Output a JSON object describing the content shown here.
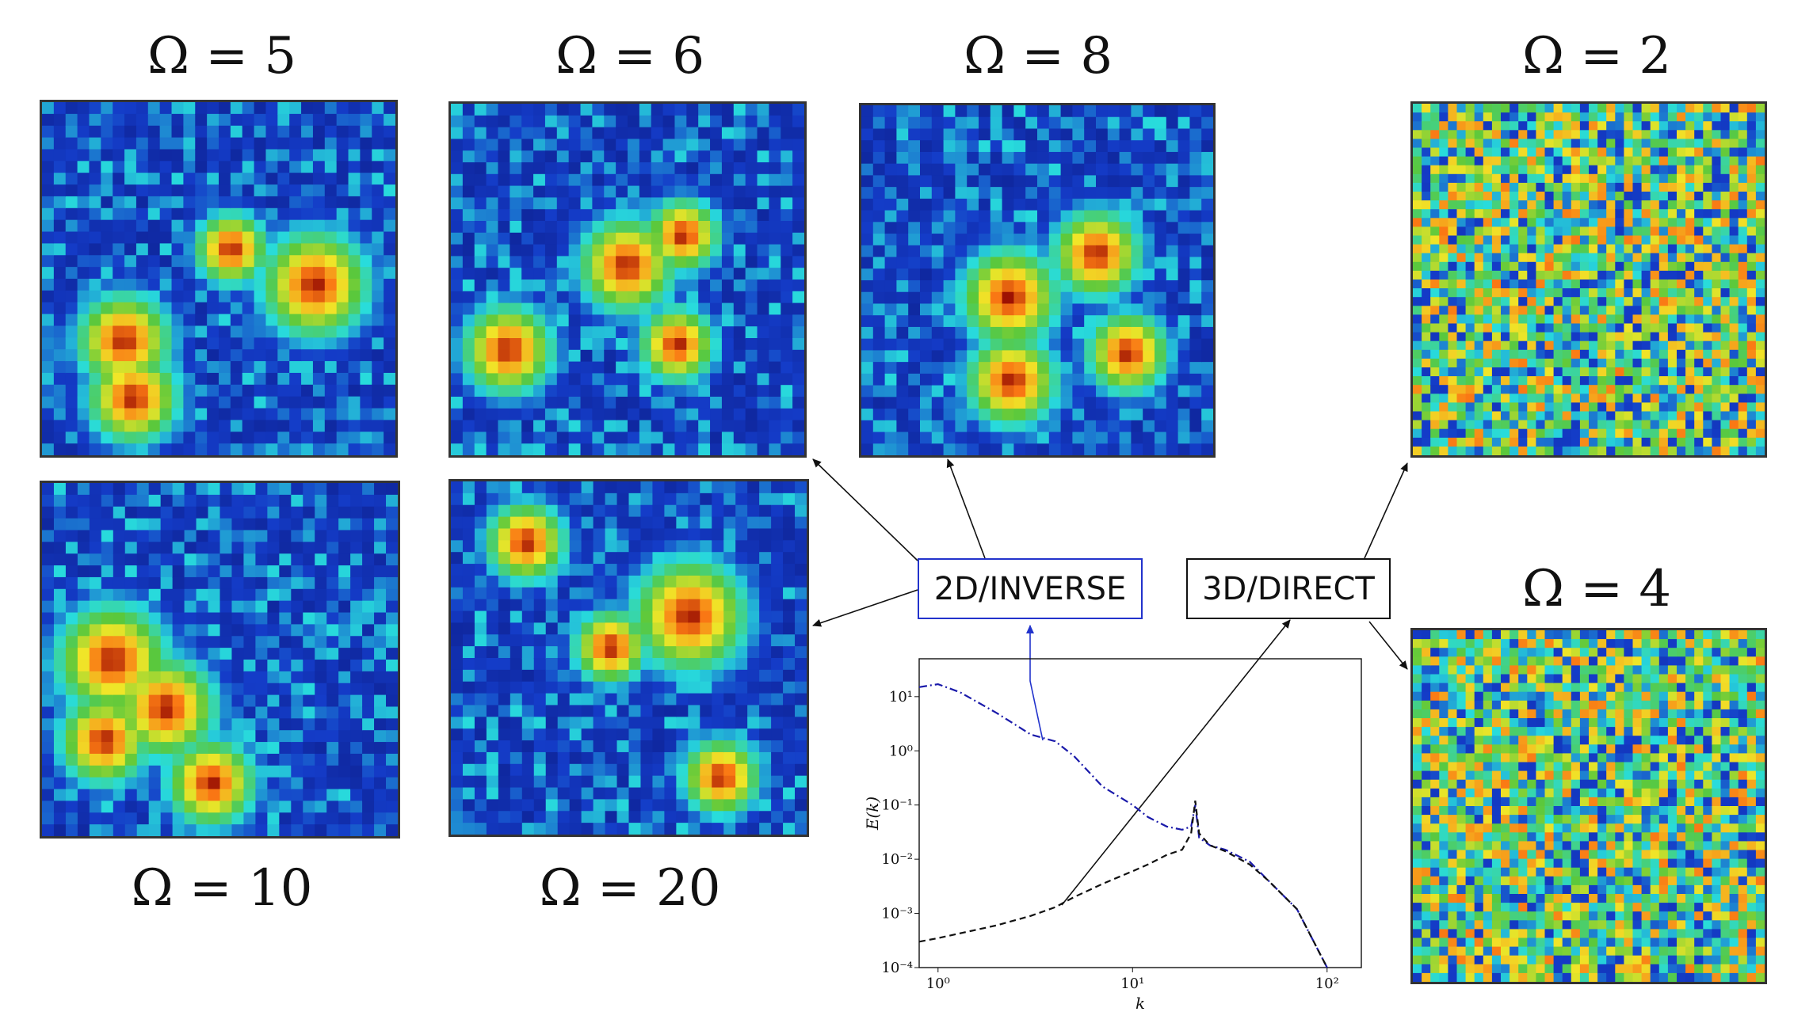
{
  "panels": {
    "p5": {
      "label": "Ω = 5"
    },
    "p6": {
      "label": "Ω = 6"
    },
    "p8": {
      "label": "Ω = 8"
    },
    "p2": {
      "label": "Ω = 2"
    },
    "p10": {
      "label": "Ω = 10"
    },
    "p20": {
      "label": "Ω = 20"
    },
    "p4": {
      "label": "Ω = 4"
    }
  },
  "boxes": {
    "inverse": "2D/INVERSE",
    "direct": "3D/DIRECT"
  },
  "colors": {
    "inverse_box": "#2233cc",
    "direct_box": "#111111",
    "field_low": "#0d1e8c",
    "field_high": "#8b0000"
  },
  "chart_data": {
    "type": "line",
    "xscale": "log",
    "yscale": "log",
    "xlim": [
      0.8,
      150
    ],
    "ylim": [
      0.0001,
      50
    ],
    "xlabel": "k",
    "ylabel": "E(k)",
    "xticks": [
      "10⁰",
      "10¹",
      "10²"
    ],
    "yticks": [
      "10¹",
      "10⁰",
      "10⁻¹",
      "10⁻²",
      "10⁻³",
      "10⁻⁴"
    ],
    "series": [
      {
        "style": "dash-dot",
        "color": "#1a1aaa",
        "x": [
          0.8,
          1,
          1.3,
          2,
          3,
          4,
          5,
          7,
          10,
          12,
          15,
          18,
          20,
          21,
          22,
          25,
          30,
          40,
          50,
          70,
          100
        ],
        "y": [
          15,
          17,
          12,
          5,
          2,
          1.5,
          0.8,
          0.22,
          0.1,
          0.06,
          0.04,
          0.035,
          0.04,
          0.1,
          0.025,
          0.018,
          0.015,
          0.009,
          0.004,
          0.0012,
          0.0001
        ]
      },
      {
        "style": "dashed",
        "color": "#111111",
        "x": [
          0.8,
          1,
          2,
          3,
          4,
          5,
          7,
          10,
          12,
          15,
          18,
          20,
          21,
          22,
          25,
          30,
          40,
          50,
          70,
          100
        ],
        "y": [
          0.0003,
          0.00035,
          0.0006,
          0.0009,
          0.0013,
          0.002,
          0.0035,
          0.006,
          0.008,
          0.012,
          0.015,
          0.03,
          0.12,
          0.03,
          0.018,
          0.014,
          0.008,
          0.004,
          0.0012,
          0.0001
        ]
      }
    ]
  }
}
